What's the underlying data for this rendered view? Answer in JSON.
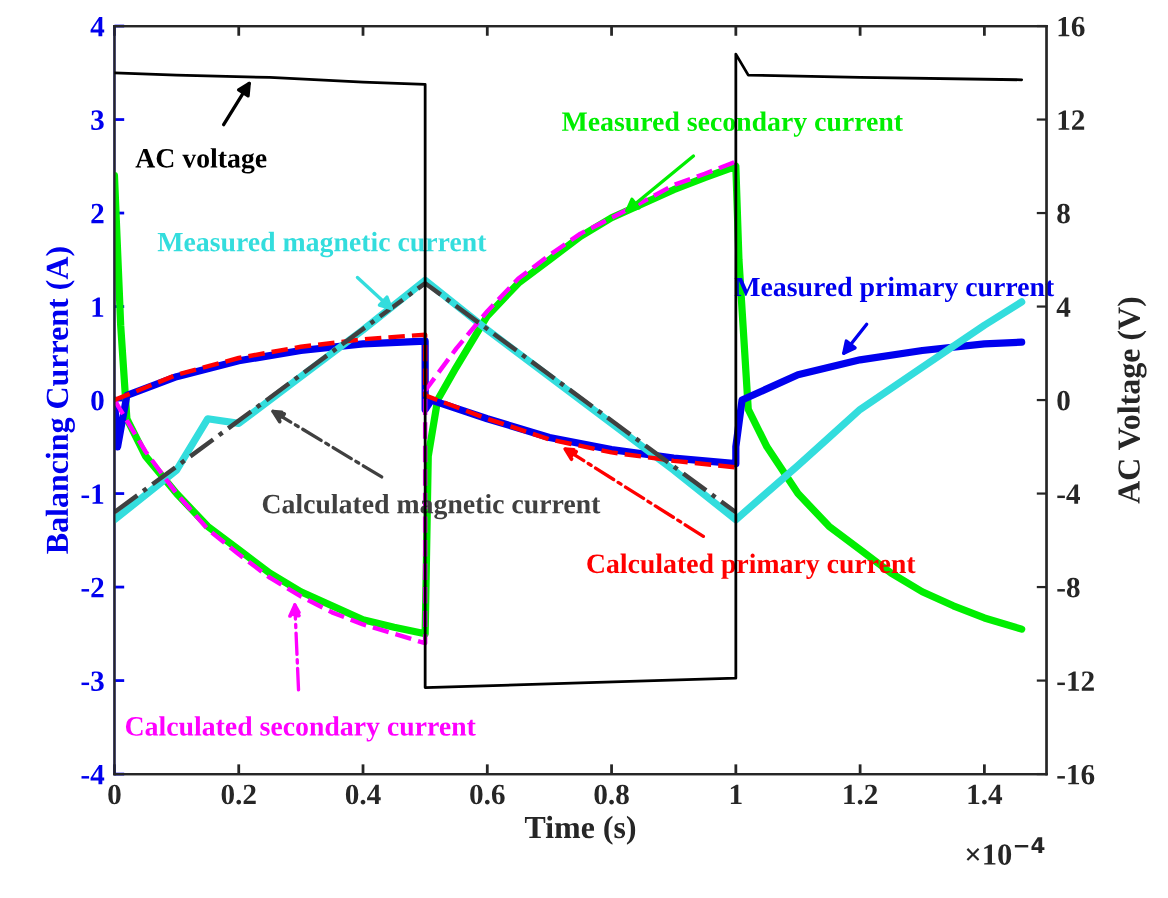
{
  "chart_data": {
    "type": "line",
    "xlabel": "Time (s)",
    "ylabel": "Balancing Current (A)",
    "y2label": "AC Voltage (V)",
    "xlim": [
      0,
      1.5
    ],
    "xticks": [
      0,
      0.2,
      0.4,
      0.6,
      0.8,
      1,
      1.2,
      1.4
    ],
    "ylim": [
      -4,
      4
    ],
    "yticks": [
      -4,
      -3,
      -2,
      -1,
      0,
      1,
      2,
      3,
      4
    ],
    "y2lim": [
      -16,
      16
    ],
    "y2ticks": [
      -16,
      -12,
      -8,
      -4,
      0,
      4,
      8,
      12,
      16
    ],
    "grid": false,
    "legend": false,
    "marker": "none",
    "series": [
      {
        "color": "#00ee00",
        "line_style": "solid",
        "x": [
          0,
          0.01,
          0.02,
          0.05,
          0.1,
          0.15,
          0.2,
          0.25,
          0.3,
          0.35,
          0.4,
          0.45,
          0.5,
          0.505,
          0.52,
          0.55,
          0.6,
          0.65,
          0.7,
          0.75,
          0.8,
          0.85,
          0.9,
          0.95,
          1.0,
          1.005,
          1.02,
          1.05,
          1.1,
          1.15,
          1.2,
          1.25,
          1.3,
          1.35,
          1.4,
          1.46
        ],
        "values": [
          2.4,
          0.8,
          -0.2,
          -0.6,
          -1.0,
          -1.35,
          -1.6,
          -1.85,
          -2.05,
          -2.2,
          -2.35,
          -2.43,
          -2.5,
          -0.6,
          0.0,
          0.35,
          0.9,
          1.25,
          1.5,
          1.75,
          1.95,
          2.1,
          2.25,
          2.38,
          2.5,
          1.5,
          -0.1,
          -0.5,
          -1.0,
          -1.35,
          -1.6,
          -1.85,
          -2.05,
          -2.2,
          -2.33,
          -2.45
        ]
      },
      {
        "color": "#ff00ff",
        "line_style": "dashed",
        "x": [
          0,
          0.05,
          0.1,
          0.15,
          0.2,
          0.25,
          0.3,
          0.35,
          0.4,
          0.45,
          0.5,
          0.5,
          0.55,
          0.6,
          0.65,
          0.7,
          0.75,
          0.8,
          0.85,
          0.9,
          0.95,
          1.0
        ],
        "values": [
          0,
          -0.55,
          -1.0,
          -1.38,
          -1.65,
          -1.9,
          -2.1,
          -2.27,
          -2.4,
          -2.5,
          -2.6,
          0.1,
          0.55,
          0.95,
          1.3,
          1.55,
          1.78,
          1.95,
          2.12,
          2.3,
          2.42,
          2.55
        ]
      },
      {
        "color": "#0000ee",
        "line_style": "solid",
        "x": [
          0,
          0.005,
          0.02,
          0.1,
          0.2,
          0.3,
          0.4,
          0.5,
          0.5,
          0.51,
          0.6,
          0.7,
          0.8,
          0.9,
          1.0,
          1.0,
          1.01,
          1.1,
          1.2,
          1.3,
          1.4,
          1.46
        ],
        "values": [
          0,
          -0.5,
          0.05,
          0.25,
          0.42,
          0.53,
          0.6,
          0.63,
          -0.1,
          0.0,
          -0.2,
          -0.4,
          -0.53,
          -0.62,
          -0.68,
          -0.5,
          0.0,
          0.27,
          0.43,
          0.53,
          0.6,
          0.62
        ]
      },
      {
        "color": "#ff0000",
        "line_style": "dashed",
        "x": [
          0,
          0.1,
          0.2,
          0.3,
          0.4,
          0.5,
          0.5,
          0.6,
          0.7,
          0.8,
          0.9,
          1.0
        ],
        "values": [
          0,
          0.27,
          0.45,
          0.57,
          0.65,
          0.7,
          0.05,
          -0.2,
          -0.42,
          -0.56,
          -0.65,
          -0.72
        ]
      },
      {
        "color": "#33dddd",
        "line_style": "solid",
        "x": [
          0,
          0.1,
          0.15,
          0.2,
          0.3,
          0.4,
          0.5,
          0.6,
          0.7,
          0.8,
          0.9,
          1.0,
          1.1,
          1.15,
          1.2,
          1.3,
          1.4,
          1.46
        ],
        "values": [
          -1.28,
          -0.75,
          -0.2,
          -0.25,
          0.25,
          0.75,
          1.28,
          0.75,
          0.25,
          -0.25,
          -0.75,
          -1.28,
          -0.7,
          -0.4,
          -0.1,
          0.35,
          0.8,
          1.05
        ]
      },
      {
        "color": "#404040",
        "line_style": "dashed",
        "x": [
          0,
          0.5,
          1.0
        ],
        "values": [
          -1.2,
          1.25,
          -1.2
        ]
      },
      {
        "color": "#000000",
        "line_style": "solid",
        "axis": "y2",
        "x": [
          0,
          0.1,
          0.25,
          0.4,
          0.5,
          0.5,
          0.75,
          1.0,
          1.0,
          1.02,
          1.2,
          1.46
        ],
        "values": [
          14,
          13.9,
          13.8,
          13.6,
          13.5,
          -12.3,
          -12.1,
          -11.9,
          14.8,
          13.9,
          13.8,
          13.7
        ]
      }
    ],
    "annotations": [
      {
        "text": "AC voltage",
        "x": 0.22,
        "y": 3.42
      },
      {
        "text": "Measured secondary current",
        "x": 0.82,
        "y": 2.0
      },
      {
        "text": "Measured magnetic current",
        "x": 0.45,
        "y": 0.95
      },
      {
        "text": "Measured primary current",
        "x": 1.17,
        "y": 0.47
      },
      {
        "text": "Calculated magnetic current",
        "x": 0.25,
        "y": -0.1
      },
      {
        "text": "Calculated primary current",
        "x": 0.72,
        "y": -0.5
      },
      {
        "text": "Calculated secondary current",
        "x": 0.29,
        "y": -2.15
      },
      "×10$^{−4}$"
    ]
  }
}
